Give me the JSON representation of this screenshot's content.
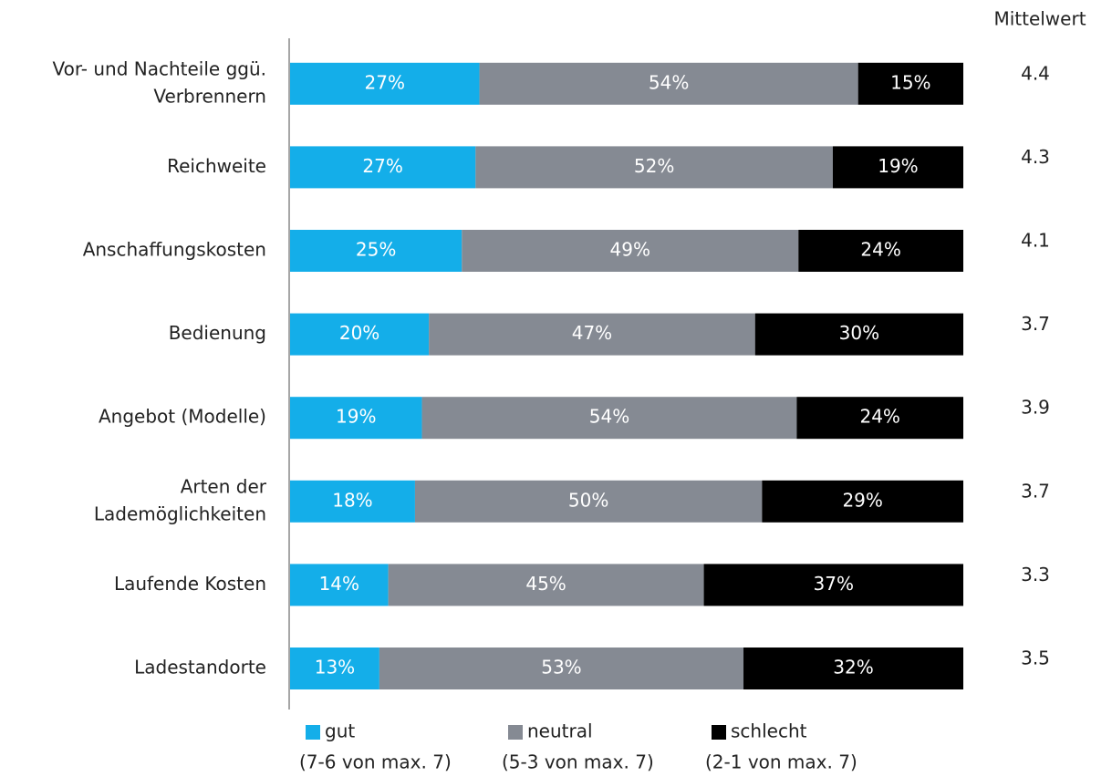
{
  "chart_data": {
    "type": "stacked-barh",
    "categories": [
      [
        "Vor- und Nachteile ggü.",
        "Verbrennern"
      ],
      [
        "Reichweite"
      ],
      [
        "Anschaffungskosten"
      ],
      [
        "Bedienung"
      ],
      [
        "Angebot (Modelle)"
      ],
      [
        "Arten der",
        "Lademöglichkeiten"
      ],
      [
        "Laufende Kosten"
      ],
      [
        "Ladestandorte"
      ]
    ],
    "series": [
      {
        "name": "gut",
        "description": "(7-6 von max. 7)",
        "color": "#14aee9",
        "values": [
          27,
          27,
          25,
          20,
          19,
          18,
          14,
          13
        ],
        "value_labels": [
          "27%",
          "27%",
          "25%",
          "20%",
          "19%",
          "18%",
          "14%",
          "13%"
        ]
      },
      {
        "name": "neutral",
        "description": "(5-3 von max. 7)",
        "color": "#858a93",
        "values": [
          54,
          52,
          49,
          47,
          54,
          50,
          45,
          53
        ],
        "value_labels": [
          "54%",
          "52%",
          "49%",
          "47%",
          "54%",
          "50%",
          "45%",
          "53%"
        ]
      },
      {
        "name": "schlecht",
        "description": "(2-1 von max. 7)",
        "color": "#000000",
        "values": [
          15,
          19,
          24,
          30,
          24,
          29,
          37,
          32
        ],
        "value_labels": [
          "15%",
          "19%",
          "24%",
          "30%",
          "24%",
          "29%",
          "37%",
          "32%"
        ]
      }
    ],
    "mean": {
      "title": "Mittelwert",
      "values": [
        4.4,
        4.3,
        4.1,
        3.7,
        3.9,
        3.7,
        3.3,
        3.5
      ]
    }
  }
}
